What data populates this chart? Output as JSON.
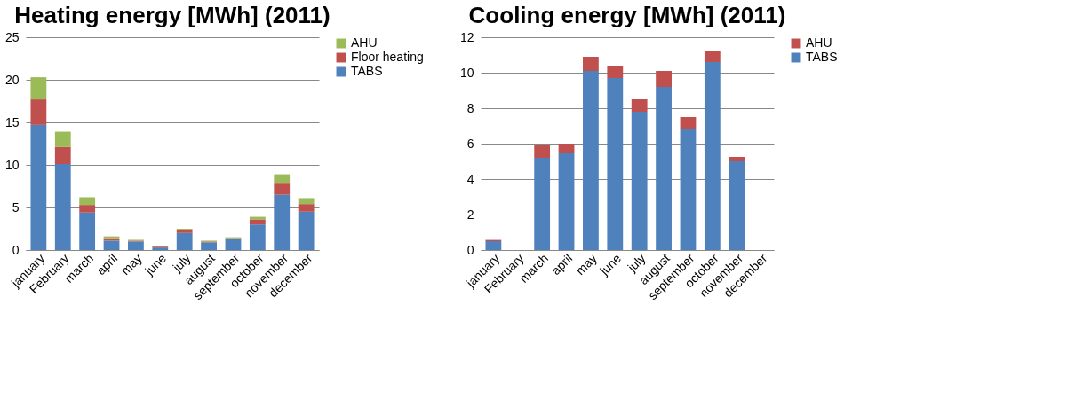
{
  "chart_data": [
    {
      "type": "bar",
      "title": "Heating energy [MWh] (2011)",
      "stacked": true,
      "grid": "y",
      "legend": "right",
      "categories": [
        "january",
        "February",
        "march",
        "april",
        "may",
        "june",
        "july",
        "august",
        "september",
        "october",
        "november",
        "december"
      ],
      "ylim": [
        0,
        25
      ],
      "yticks": [
        0,
        5,
        10,
        15,
        20,
        25
      ],
      "series": [
        {
          "name": "TABS",
          "color": "#4f81bd",
          "values": [
            14.7,
            10.1,
            4.4,
            1.1,
            1.0,
            0.3,
            2.0,
            0.9,
            1.3,
            3.0,
            6.5,
            4.5
          ]
        },
        {
          "name": "Floor heating",
          "color": "#c0504d",
          "values": [
            3.0,
            2.0,
            0.9,
            0.3,
            0.1,
            0.1,
            0.4,
            0.1,
            0.1,
            0.6,
            1.4,
            0.9
          ]
        },
        {
          "name": "AHU",
          "color": "#9bbb59",
          "values": [
            2.6,
            1.8,
            0.9,
            0.2,
            0.1,
            0.1,
            0.1,
            0.1,
            0.1,
            0.3,
            1.0,
            0.7
          ]
        }
      ]
    },
    {
      "type": "bar",
      "title": "Cooling energy [MWh] (2011)",
      "stacked": true,
      "grid": "y",
      "legend": "right",
      "categories": [
        "january",
        "February",
        "march",
        "april",
        "may",
        "june",
        "july",
        "august",
        "september",
        "october",
        "november",
        "december"
      ],
      "ylim": [
        0,
        12
      ],
      "yticks": [
        0,
        2,
        4,
        6,
        8,
        10,
        12
      ],
      "series": [
        {
          "name": "TABS",
          "color": "#4f81bd",
          "values": [
            0.5,
            null,
            5.2,
            5.5,
            10.1,
            9.7,
            7.8,
            9.2,
            6.8,
            10.6,
            5.0,
            null
          ]
        },
        {
          "name": "AHU",
          "color": "#c0504d",
          "values": [
            0.07,
            null,
            0.7,
            0.5,
            0.8,
            0.65,
            0.7,
            0.9,
            0.7,
            0.65,
            0.25,
            null
          ]
        }
      ]
    }
  ]
}
